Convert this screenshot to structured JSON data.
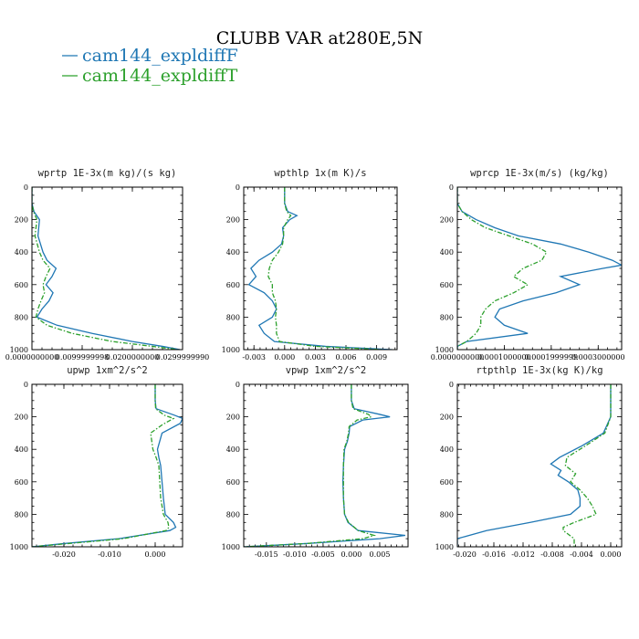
{
  "page": {
    "title": "CLUBB VAR at280E,5N",
    "legend": [
      {
        "label": "cam144_expldiffF",
        "color": "#1f77b4",
        "dash": false
      },
      {
        "label": "cam144_expldiffT",
        "color": "#2ca02c",
        "dash": true
      }
    ]
  },
  "chart_data": [
    {
      "type": "line",
      "title": "wprtp  1E-3x(m kg)/(s kg)",
      "xlim": [
        0.0,
        0.03
      ],
      "xticks": [
        0.0,
        0.01,
        0.02,
        0.03
      ],
      "xticklabels": [
        "0.0000000000",
        "0.0099999998",
        "0.0200000000",
        "0.0299999990"
      ],
      "ylim": [
        1000,
        0
      ],
      "yticks": [
        0,
        200,
        400,
        600,
        800,
        1000
      ],
      "series": [
        {
          "p": [
            0,
            100,
            150,
            200,
            300,
            400,
            450,
            500,
            550,
            600,
            650,
            700,
            750,
            800,
            850,
            900,
            950,
            980,
            1000
          ],
          "x": [
            0,
            0,
            0.0004,
            0.0015,
            0.0012,
            0.0022,
            0.003,
            0.0048,
            0.004,
            0.0028,
            0.0042,
            0.0034,
            0.002,
            0.001,
            0.005,
            0.012,
            0.02,
            0.026,
            0.0295
          ]
        },
        {
          "p": [
            0,
            100,
            150,
            200,
            300,
            400,
            450,
            500,
            550,
            600,
            650,
            700,
            750,
            800,
            850,
            900,
            950,
            980,
            1000
          ],
          "x": [
            0,
            0,
            0.0003,
            0.001,
            0.0006,
            0.0015,
            0.0022,
            0.0036,
            0.0028,
            0.0022,
            0.0025,
            0.0018,
            0.0012,
            0.0008,
            0.003,
            0.008,
            0.016,
            0.024,
            0.029
          ]
        }
      ]
    },
    {
      "type": "line",
      "title": "wpthlp  1x(m K)/s",
      "xlim": [
        -0.004,
        0.011
      ],
      "xticks": [
        -0.003,
        0.0,
        0.003,
        0.006,
        0.009
      ],
      "xticklabels": [
        "-0.003",
        "0.000",
        "0.003",
        "0.006",
        "0.009"
      ],
      "ylim": [
        1000,
        0
      ],
      "yticks": [
        0,
        200,
        400,
        600,
        800,
        1000
      ],
      "series": [
        {
          "p": [
            0,
            100,
            150,
            175,
            200,
            250,
            300,
            350,
            400,
            450,
            500,
            550,
            600,
            650,
            700,
            750,
            800,
            850,
            900,
            950,
            980,
            1000
          ],
          "x": [
            0,
            0,
            0.0003,
            0.0012,
            0.0005,
            -0.0002,
            -0.0001,
            -0.0003,
            -0.0012,
            -0.0025,
            -0.0033,
            -0.0028,
            -0.0035,
            -0.002,
            -0.0012,
            -0.0008,
            -0.0012,
            -0.0025,
            -0.002,
            -0.001,
            0.004,
            0.0105
          ]
        },
        {
          "p": [
            0,
            100,
            150,
            175,
            200,
            250,
            300,
            350,
            400,
            450,
            500,
            550,
            600,
            650,
            700,
            750,
            800,
            850,
            900,
            950,
            980,
            1000
          ],
          "x": [
            0,
            0,
            0.0002,
            0.0006,
            0.0003,
            -0.0001,
            -0.0001,
            -0.0002,
            -0.0006,
            -0.0012,
            -0.0015,
            -0.0016,
            -0.0012,
            -0.0012,
            -0.0009,
            -0.0008,
            -0.0009,
            -0.0008,
            -0.0008,
            -0.0005,
            0.003,
            0.0095
          ]
        }
      ]
    },
    {
      "type": "line",
      "title": "wprcp  1E-3x(m/s) (kg/kg)",
      "xlim": [
        0.0,
        0.00035
      ],
      "xticks": [
        0.0,
        0.0001,
        0.0002,
        0.0003
      ],
      "xticklabels": [
        "0.0000000000",
        "0.0001000000",
        "0.0001999999",
        "0.0003000000"
      ],
      "ylim": [
        1000,
        0
      ],
      "yticks": [
        0,
        200,
        400,
        600,
        800,
        1000
      ],
      "series": [
        {
          "p": [
            0,
            100,
            150,
            200,
            250,
            300,
            350,
            400,
            450,
            480,
            500,
            550,
            600,
            650,
            700,
            750,
            800,
            850,
            900,
            950,
            980,
            1000
          ],
          "x": [
            0,
            0,
            1e-05,
            4e-05,
            8e-05,
            0.00013,
            0.00022,
            0.00028,
            0.00033,
            0.00035,
            0.00031,
            0.00022,
            0.00026,
            0.00021,
            0.00014,
            9e-05,
            8e-05,
            0.0001,
            0.00015,
            2e-05,
            0,
            0
          ]
        },
        {
          "p": [
            0,
            100,
            150,
            200,
            250,
            300,
            350,
            400,
            450,
            500,
            550,
            600,
            650,
            700,
            750,
            800,
            850,
            900,
            950,
            980,
            1000
          ],
          "x": [
            0,
            0,
            1e-05,
            3e-05,
            6e-05,
            0.00011,
            0.00016,
            0.00019,
            0.00018,
            0.00014,
            0.00012,
            0.00015,
            0.00012,
            8e-05,
            6e-05,
            5e-05,
            5e-05,
            4e-05,
            2e-05,
            0,
            0
          ]
        }
      ]
    },
    {
      "type": "line",
      "title": "upwp  1xm^2/s^2",
      "xlim": [
        -0.027,
        0.006
      ],
      "xticks": [
        -0.02,
        -0.01,
        0.0
      ],
      "xticklabels": [
        "-0.020",
        "-0.010",
        "0.000"
      ],
      "ylim": [
        1000,
        0
      ],
      "yticks": [
        0,
        200,
        400,
        600,
        800,
        1000
      ],
      "series": [
        {
          "p": [
            0,
            100,
            150,
            190,
            210,
            240,
            300,
            400,
            450,
            500,
            600,
            700,
            800,
            850,
            880,
            900,
            950,
            980,
            1000
          ],
          "x": [
            0,
            0,
            0.0002,
            0.0042,
            0.006,
            0.0055,
            0.0015,
            0.0005,
            0.0008,
            0.0012,
            0.0015,
            0.0018,
            0.0022,
            0.004,
            0.0045,
            0.0032,
            -0.008,
            -0.02,
            -0.027
          ]
        },
        {
          "p": [
            0,
            100,
            150,
            190,
            210,
            250,
            300,
            400,
            450,
            500,
            600,
            700,
            800,
            850,
            880,
            900,
            950,
            980,
            1000
          ],
          "x": [
            0,
            0,
            0.0001,
            0.002,
            0.004,
            0.0015,
            -0.001,
            -0.0005,
            0.0002,
            0.0008,
            0.001,
            0.0012,
            0.0018,
            0.0028,
            0.003,
            0.0024,
            -0.007,
            -0.019,
            -0.027
          ]
        }
      ]
    },
    {
      "type": "line",
      "title": "vpwp  1xm^2/s^2",
      "xlim": [
        -0.019,
        0.01
      ],
      "xticks": [
        -0.015,
        -0.01,
        -0.005,
        0.0,
        0.005
      ],
      "xticklabels": [
        "-0.015",
        "-0.010",
        "-0.005",
        "0.000",
        "0.005"
      ],
      "ylim": [
        1000,
        0
      ],
      "yticks": [
        0,
        200,
        400,
        600,
        800,
        1000
      ],
      "series": [
        {
          "p": [
            0,
            100,
            150,
            185,
            200,
            220,
            260,
            300,
            350,
            400,
            500,
            600,
            700,
            800,
            850,
            900,
            930,
            950,
            980,
            1000
          ],
          "x": [
            0,
            0,
            0.0005,
            0.005,
            0.0068,
            0.002,
            -0.0003,
            -0.0004,
            -0.0007,
            -0.0012,
            -0.0014,
            -0.0015,
            -0.0014,
            -0.0012,
            -0.0006,
            0.0012,
            0.0095,
            0.005,
            -0.008,
            -0.019
          ]
        },
        {
          "p": [
            0,
            100,
            150,
            185,
            200,
            220,
            260,
            300,
            350,
            400,
            500,
            600,
            700,
            800,
            850,
            900,
            930,
            950,
            980,
            1000
          ],
          "x": [
            0,
            0,
            0.0003,
            0.003,
            0.0035,
            0.001,
            -0.0004,
            -0.0005,
            -0.0008,
            -0.0013,
            -0.0014,
            -0.0014,
            -0.0014,
            -0.0012,
            -0.0005,
            0.0012,
            0.004,
            0.002,
            -0.008,
            -0.019
          ]
        }
      ]
    },
    {
      "type": "line",
      "title": "rtpthlp  1E-3x(kg K)/kg",
      "xlim": [
        -0.021,
        0.0015
      ],
      "xticks": [
        -0.02,
        -0.016,
        -0.012,
        -0.008,
        -0.004,
        0.0
      ],
      "xticklabels": [
        "-0.020",
        "-0.016",
        "-0.012",
        "-0.008",
        "-0.004",
        "0.000"
      ],
      "ylim": [
        1000,
        0
      ],
      "yticks": [
        0,
        200,
        400,
        600,
        800,
        1000
      ],
      "series": [
        {
          "p": [
            0,
            100,
            200,
            300,
            380,
            450,
            490,
            530,
            560,
            600,
            650,
            700,
            750,
            800,
            850,
            900,
            950,
            1000
          ],
          "x": [
            0,
            0,
            0,
            -0.001,
            -0.004,
            -0.007,
            -0.0082,
            -0.0068,
            -0.0072,
            -0.0058,
            -0.0045,
            -0.0042,
            -0.0042,
            -0.0055,
            -0.011,
            -0.017,
            -0.021,
            -0.021
          ]
        },
        {
          "p": [
            0,
            100,
            200,
            300,
            380,
            450,
            500,
            550,
            600,
            650,
            700,
            750,
            800,
            850,
            880,
            900,
            950,
            1000
          ],
          "x": [
            0,
            0,
            0,
            -0.0008,
            -0.0035,
            -0.006,
            -0.0062,
            -0.0048,
            -0.0055,
            -0.0042,
            -0.0032,
            -0.0025,
            -0.002,
            -0.005,
            -0.0065,
            -0.0065,
            -0.005,
            -0.005
          ]
        }
      ]
    }
  ]
}
